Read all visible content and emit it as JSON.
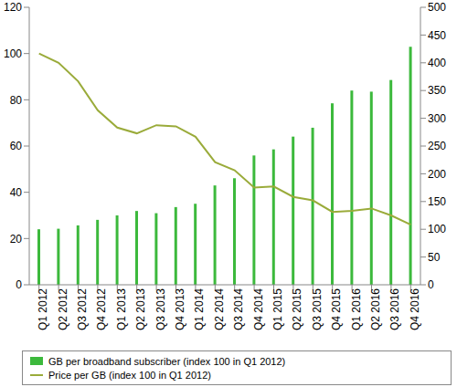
{
  "chart_data": {
    "type": "bar",
    "categories": [
      "Q1 2012",
      "Q2 2012",
      "Q3 2012",
      "Q4 2012",
      "Q1 2013",
      "Q2 2013",
      "Q3 2013",
      "Q4 2013",
      "Q1 2014",
      "Q2 2014",
      "Q3 2014",
      "Q4 2014",
      "Q1 2015",
      "Q2 2015",
      "Q3 2015",
      "Q4 2015",
      "Q1 2016",
      "Q2 2016",
      "Q3 2016",
      "Q4 2016"
    ],
    "series": [
      {
        "name": "GB per broadband subscriber (index 100 in Q1 2012)",
        "type": "bar",
        "axis": "y2",
        "color": "#3cb93c",
        "values": [
          100,
          101,
          107,
          117,
          125,
          133,
          129,
          140,
          146,
          179,
          192,
          233,
          244,
          267,
          283,
          327,
          350,
          348,
          369,
          429
        ]
      },
      {
        "name": "Price per GB (index 100 in Q1 2012)",
        "type": "line",
        "color": "#9aab3a",
        "values": [
          100,
          96,
          88,
          75.5,
          68,
          65.5,
          69,
          68.5,
          64,
          53,
          49.5,
          42,
          42.5,
          38,
          36.5,
          31.5,
          32,
          33,
          30,
          26
        ]
      }
    ],
    "ylim": [
      0,
      120
    ],
    "yticks": [
      0,
      20,
      40,
      60,
      80,
      100,
      120
    ],
    "y2lim": [
      0,
      500
    ],
    "y2ticks": [
      0,
      50,
      100,
      150,
      200,
      250,
      300,
      350,
      400,
      450,
      500
    ],
    "grid": false
  }
}
